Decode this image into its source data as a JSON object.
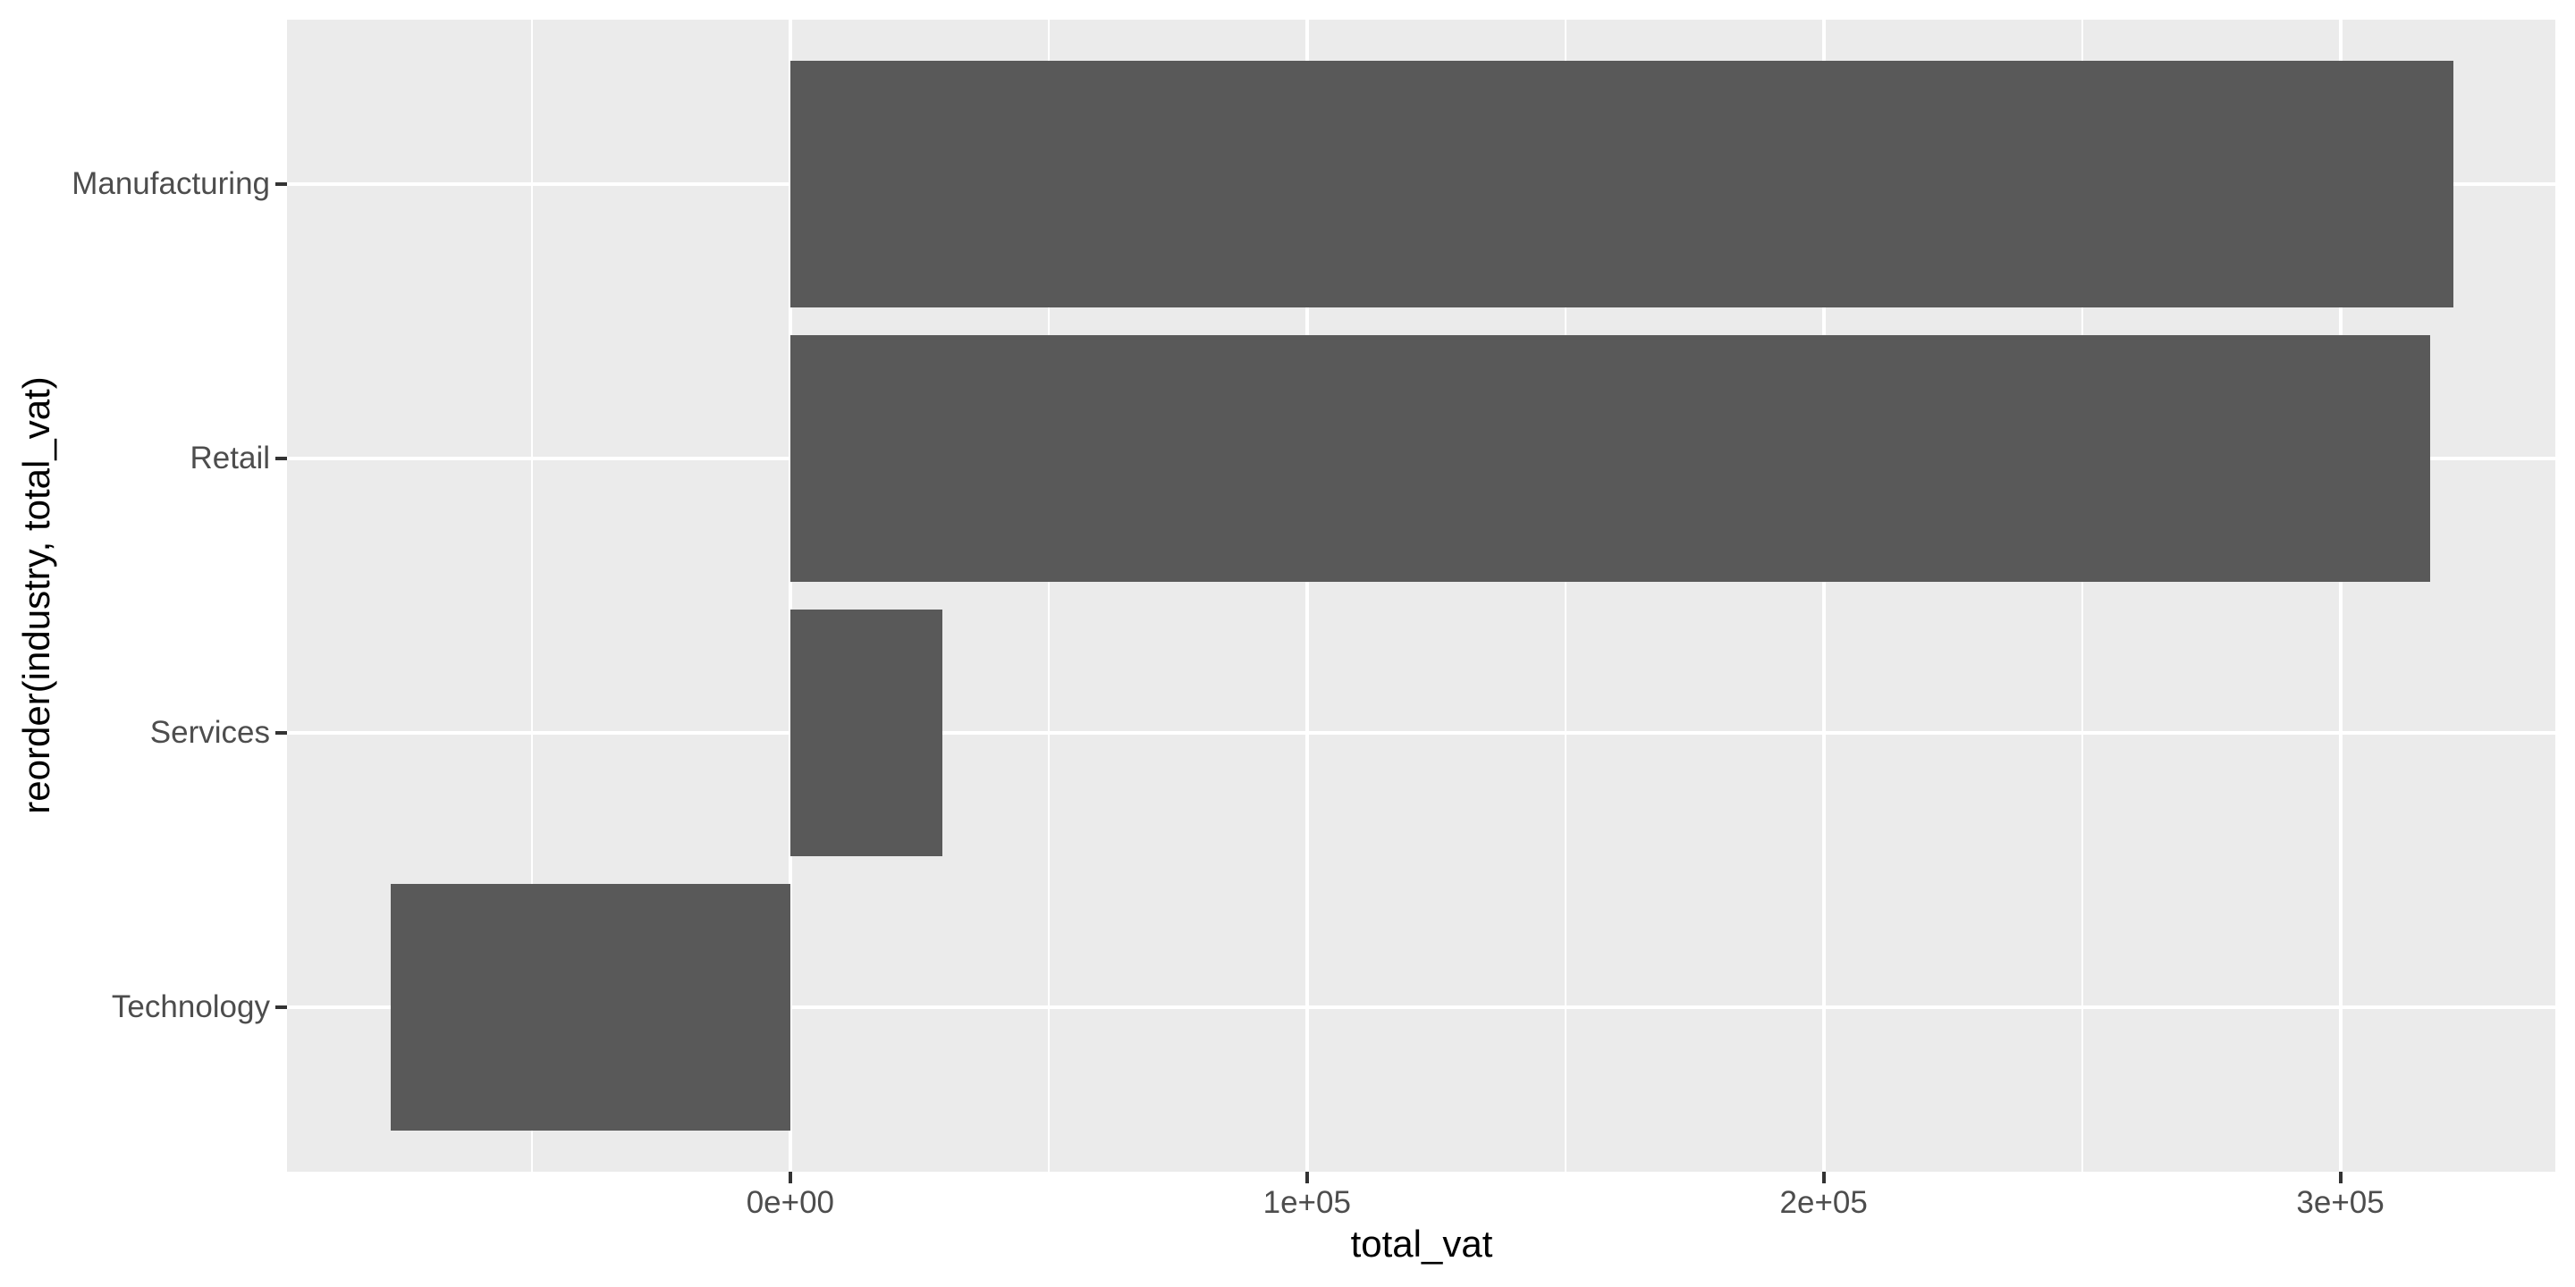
{
  "chart_data": {
    "type": "bar",
    "orientation": "horizontal",
    "title": "",
    "xlabel": "total_vat",
    "ylabel": "reorder(industry, total_vat)",
    "categories": [
      "Manufacturing",
      "Retail",
      "Services",
      "Technology"
    ],
    "values": [
      321800,
      317300,
      29400,
      -77300
    ],
    "xlim": [
      -97400,
      341600
    ],
    "x_ticks": [
      {
        "value": 0,
        "label": "0e+00"
      },
      {
        "value": 100000,
        "label": "1e+05"
      },
      {
        "value": 200000,
        "label": "2e+05"
      },
      {
        "value": 300000,
        "label": "3e+05"
      }
    ],
    "x_minor_ticks": [
      -50000,
      50000,
      150000,
      250000
    ],
    "bar_width_fraction": 0.9,
    "band_outer_expansion": 0.6,
    "grid": "white major and minor verticals, white major horizontals at category centers",
    "legend_position": "none"
  },
  "theme": {
    "background": "#FFFFFF",
    "panel_background": "#EBEBEB",
    "gridline_color": "#FFFFFF",
    "bar_fill": "#595959",
    "tick_mark_color": "#333333",
    "axis_text_color": "#4D4D4D",
    "axis_title_color": "#000000"
  }
}
